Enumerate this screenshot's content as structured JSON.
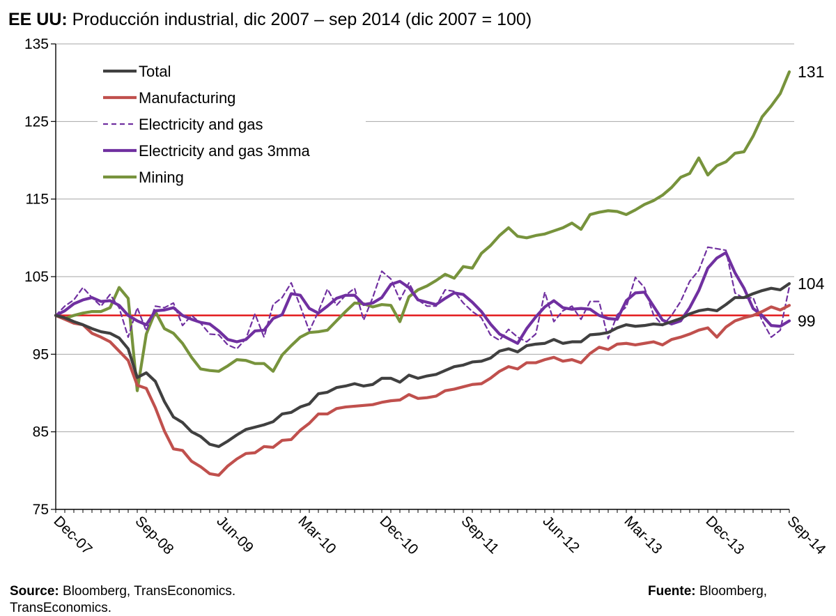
{
  "header": {
    "title_bold": "EE UU:",
    "title_rest": " Producción industrial, dic 2007 – sep 2014 (dic 2007 = 100)"
  },
  "footer": {
    "source_bold": "Source:",
    "source_text": " Bloomberg, TransEconomics.",
    "fuente_bold": "Fuente:",
    "fuente_text": " Bloomberg,",
    "cutoff_text": "TransEconomics."
  },
  "chart_data": {
    "type": "line",
    "ylim": [
      75,
      135
    ],
    "yticks": [
      75,
      85,
      95,
      105,
      115,
      125,
      135
    ],
    "x_tick_labels": [
      "Dec-07",
      "Sep-08",
      "Jun-09",
      "Mar-10",
      "Dec-10",
      "Sep-11",
      "Jun-12",
      "Mar-13",
      "Dec-13",
      "Sep-14"
    ],
    "x_tick_step_months": 9,
    "n_points": 82,
    "reference_line": {
      "value": 100,
      "color": "#e31a1c"
    },
    "legend_position": "top-left",
    "end_labels": [
      {
        "text": "131",
        "value": 131.4
      },
      {
        "text": "104",
        "value": 104.1
      },
      {
        "text": "99",
        "value": 99.3
      }
    ],
    "series": [
      {
        "name": "Total",
        "color": "#404040",
        "dashed": false,
        "values": [
          100,
          99.7,
          99.2,
          98.8,
          98.3,
          97.9,
          97.7,
          97.1,
          95.7,
          92.0,
          92.6,
          91.5,
          88.9,
          86.9,
          86.2,
          85.0,
          84.4,
          83.4,
          83.1,
          83.8,
          84.6,
          85.3,
          85.6,
          85.9,
          86.3,
          87.3,
          87.5,
          88.2,
          88.6,
          89.9,
          90.1,
          90.7,
          90.9,
          91.2,
          90.9,
          91.1,
          91.9,
          91.9,
          91.4,
          92.3,
          91.9,
          92.2,
          92.4,
          92.9,
          93.4,
          93.6,
          94.0,
          94.1,
          94.5,
          95.4,
          95.7,
          95.3,
          96.1,
          96.3,
          96.4,
          96.9,
          96.4,
          96.6,
          96.6,
          97.5,
          97.6,
          97.8,
          98.4,
          98.8,
          98.6,
          98.7,
          98.9,
          98.8,
          99.2,
          99.6,
          100.2,
          100.6,
          100.8,
          100.6,
          101.4,
          102.3,
          102.3,
          102.8,
          103.2,
          103.5,
          103.3,
          104.1
        ]
      },
      {
        "name": "Manufacturing",
        "color": "#c0504d",
        "dashed": false,
        "values": [
          100,
          99.5,
          99.0,
          98.8,
          97.7,
          97.2,
          96.6,
          95.4,
          94.2,
          91.0,
          90.6,
          88.1,
          85.1,
          82.8,
          82.6,
          81.2,
          80.5,
          79.6,
          79.4,
          80.6,
          81.5,
          82.2,
          82.3,
          83.1,
          83.0,
          83.9,
          84.0,
          85.2,
          86.1,
          87.3,
          87.3,
          88.0,
          88.2,
          88.3,
          88.4,
          88.5,
          88.8,
          89.0,
          89.1,
          89.8,
          89.3,
          89.4,
          89.6,
          90.3,
          90.5,
          90.8,
          91.1,
          91.2,
          91.9,
          92.8,
          93.4,
          93.1,
          93.9,
          93.9,
          94.3,
          94.6,
          94.1,
          94.3,
          93.9,
          95.1,
          95.9,
          95.6,
          96.3,
          96.4,
          96.2,
          96.4,
          96.6,
          96.2,
          96.9,
          97.2,
          97.6,
          98.1,
          98.4,
          97.2,
          98.5,
          99.3,
          99.7,
          100.0,
          100.5,
          101.1,
          100.7,
          101.3
        ]
      },
      {
        "name": "Electricity and gas",
        "color": "#7030a0",
        "dashed": true,
        "values": [
          100,
          101.2,
          102.0,
          103.6,
          102.3,
          101.2,
          102.7,
          101.0,
          97.2,
          101.0,
          98.0,
          101.2,
          101.0,
          101.6,
          98.7,
          100.0,
          99.0,
          97.6,
          97.5,
          96.2,
          95.7,
          97.0,
          100.2,
          97.2,
          101.4,
          102.3,
          104.2,
          101.2,
          98.0,
          100.5,
          103.4,
          101.3,
          102.6,
          103.5,
          99.4,
          102.3,
          105.7,
          104.7,
          102.0,
          104.2,
          102.0,
          101.2,
          101.2,
          103.3,
          103.1,
          101.6,
          100.5,
          99.7,
          97.5,
          96.8,
          98.2,
          97.2,
          96.6,
          97.6,
          103.0,
          99.2,
          100.6,
          101.2,
          99.5,
          101.8,
          101.8,
          97.0,
          100.1,
          101.1,
          104.9,
          103.6,
          100.1,
          98.7,
          100.0,
          101.8,
          104.4,
          105.8,
          108.8,
          108.6,
          108.4,
          102.9,
          102.2,
          102.3,
          99.3,
          97.2,
          98.1,
          103.7
        ]
      },
      {
        "name": "Electricity and gas 3mma",
        "color": "#7030a0",
        "dashed": false,
        "values": [
          100,
          100.6,
          101.5,
          102.0,
          102.3,
          101.8,
          101.9,
          101.3,
          100.0,
          99.3,
          98.8,
          100.6,
          100.7,
          101.0,
          100.0,
          99.5,
          99.1,
          98.9,
          98.0,
          96.9,
          96.6,
          96.9,
          98.0,
          98.1,
          99.6,
          100.1,
          102.8,
          102.6,
          100.9,
          100.3,
          101.2,
          102.2,
          102.6,
          102.6,
          101.4,
          101.6,
          102.3,
          104.0,
          104.4,
          103.6,
          102.0,
          101.7,
          101.4,
          102.2,
          102.9,
          102.7,
          101.7,
          100.5,
          98.9,
          97.6,
          97.0,
          96.4,
          98.3,
          99.8,
          101.1,
          101.9,
          101.0,
          100.8,
          100.9,
          100.8,
          100.0,
          99.6,
          99.5,
          101.9,
          102.9,
          103.0,
          101.2,
          99.4,
          98.9,
          99.3,
          101.0,
          103.2,
          106.1,
          107.4,
          108.1,
          105.5,
          103.5,
          100.9,
          100.0,
          98.7,
          98.6,
          99.3
        ]
      },
      {
        "name": "Mining",
        "color": "#77933c",
        "dashed": false,
        "values": [
          100,
          99.6,
          100.0,
          100.3,
          100.5,
          100.5,
          101.0,
          103.6,
          102.2,
          90.3,
          97.6,
          100.5,
          98.3,
          97.7,
          96.4,
          94.6,
          93.1,
          92.9,
          92.8,
          93.5,
          94.3,
          94.2,
          93.8,
          93.8,
          92.8,
          94.9,
          96.1,
          97.2,
          97.8,
          97.9,
          98.1,
          99.3,
          100.5,
          101.6,
          101.5,
          101.1,
          101.4,
          101.3,
          99.2,
          102.4,
          103.3,
          103.8,
          104.5,
          105.3,
          104.8,
          106.3,
          106.1,
          108.0,
          109.0,
          110.3,
          111.3,
          110.2,
          110.0,
          110.3,
          110.5,
          110.9,
          111.3,
          111.9,
          111.1,
          113.0,
          113.3,
          113.5,
          113.4,
          113.0,
          113.6,
          114.3,
          114.8,
          115.5,
          116.5,
          117.8,
          118.3,
          120.3,
          118.1,
          119.3,
          119.8,
          120.9,
          121.1,
          123.1,
          125.6,
          127.0,
          128.6,
          131.4
        ]
      }
    ]
  }
}
